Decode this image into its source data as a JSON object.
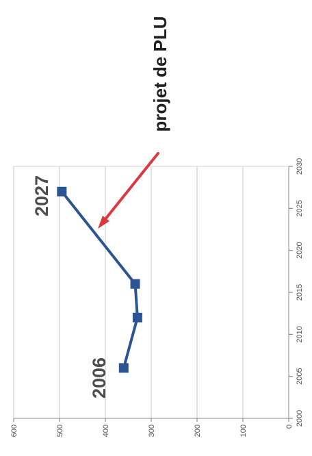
{
  "chart_data": {
    "type": "line",
    "x": [
      2006,
      2012,
      2016,
      2027
    ],
    "series": [
      {
        "values": [
          360,
          330,
          335,
          495
        ],
        "color": "#2b5592"
      }
    ],
    "xlim": [
      2000,
      2030
    ],
    "ylim": [
      0,
      600
    ],
    "x_ticks": [
      "2000",
      "2005",
      "2010",
      "2015",
      "2020",
      "2025",
      "2030"
    ],
    "y_ticks": [
      "0",
      "100",
      "200",
      "300",
      "400",
      "500",
      "600"
    ],
    "grid": "horizontal",
    "orientation": "rotated-90-clockwise",
    "annotations": {
      "start_label": "2006",
      "end_label": "2027",
      "callout": "projet de PLU",
      "callout_color": "#d9343c",
      "arrow_color": "#d93a3e"
    }
  }
}
